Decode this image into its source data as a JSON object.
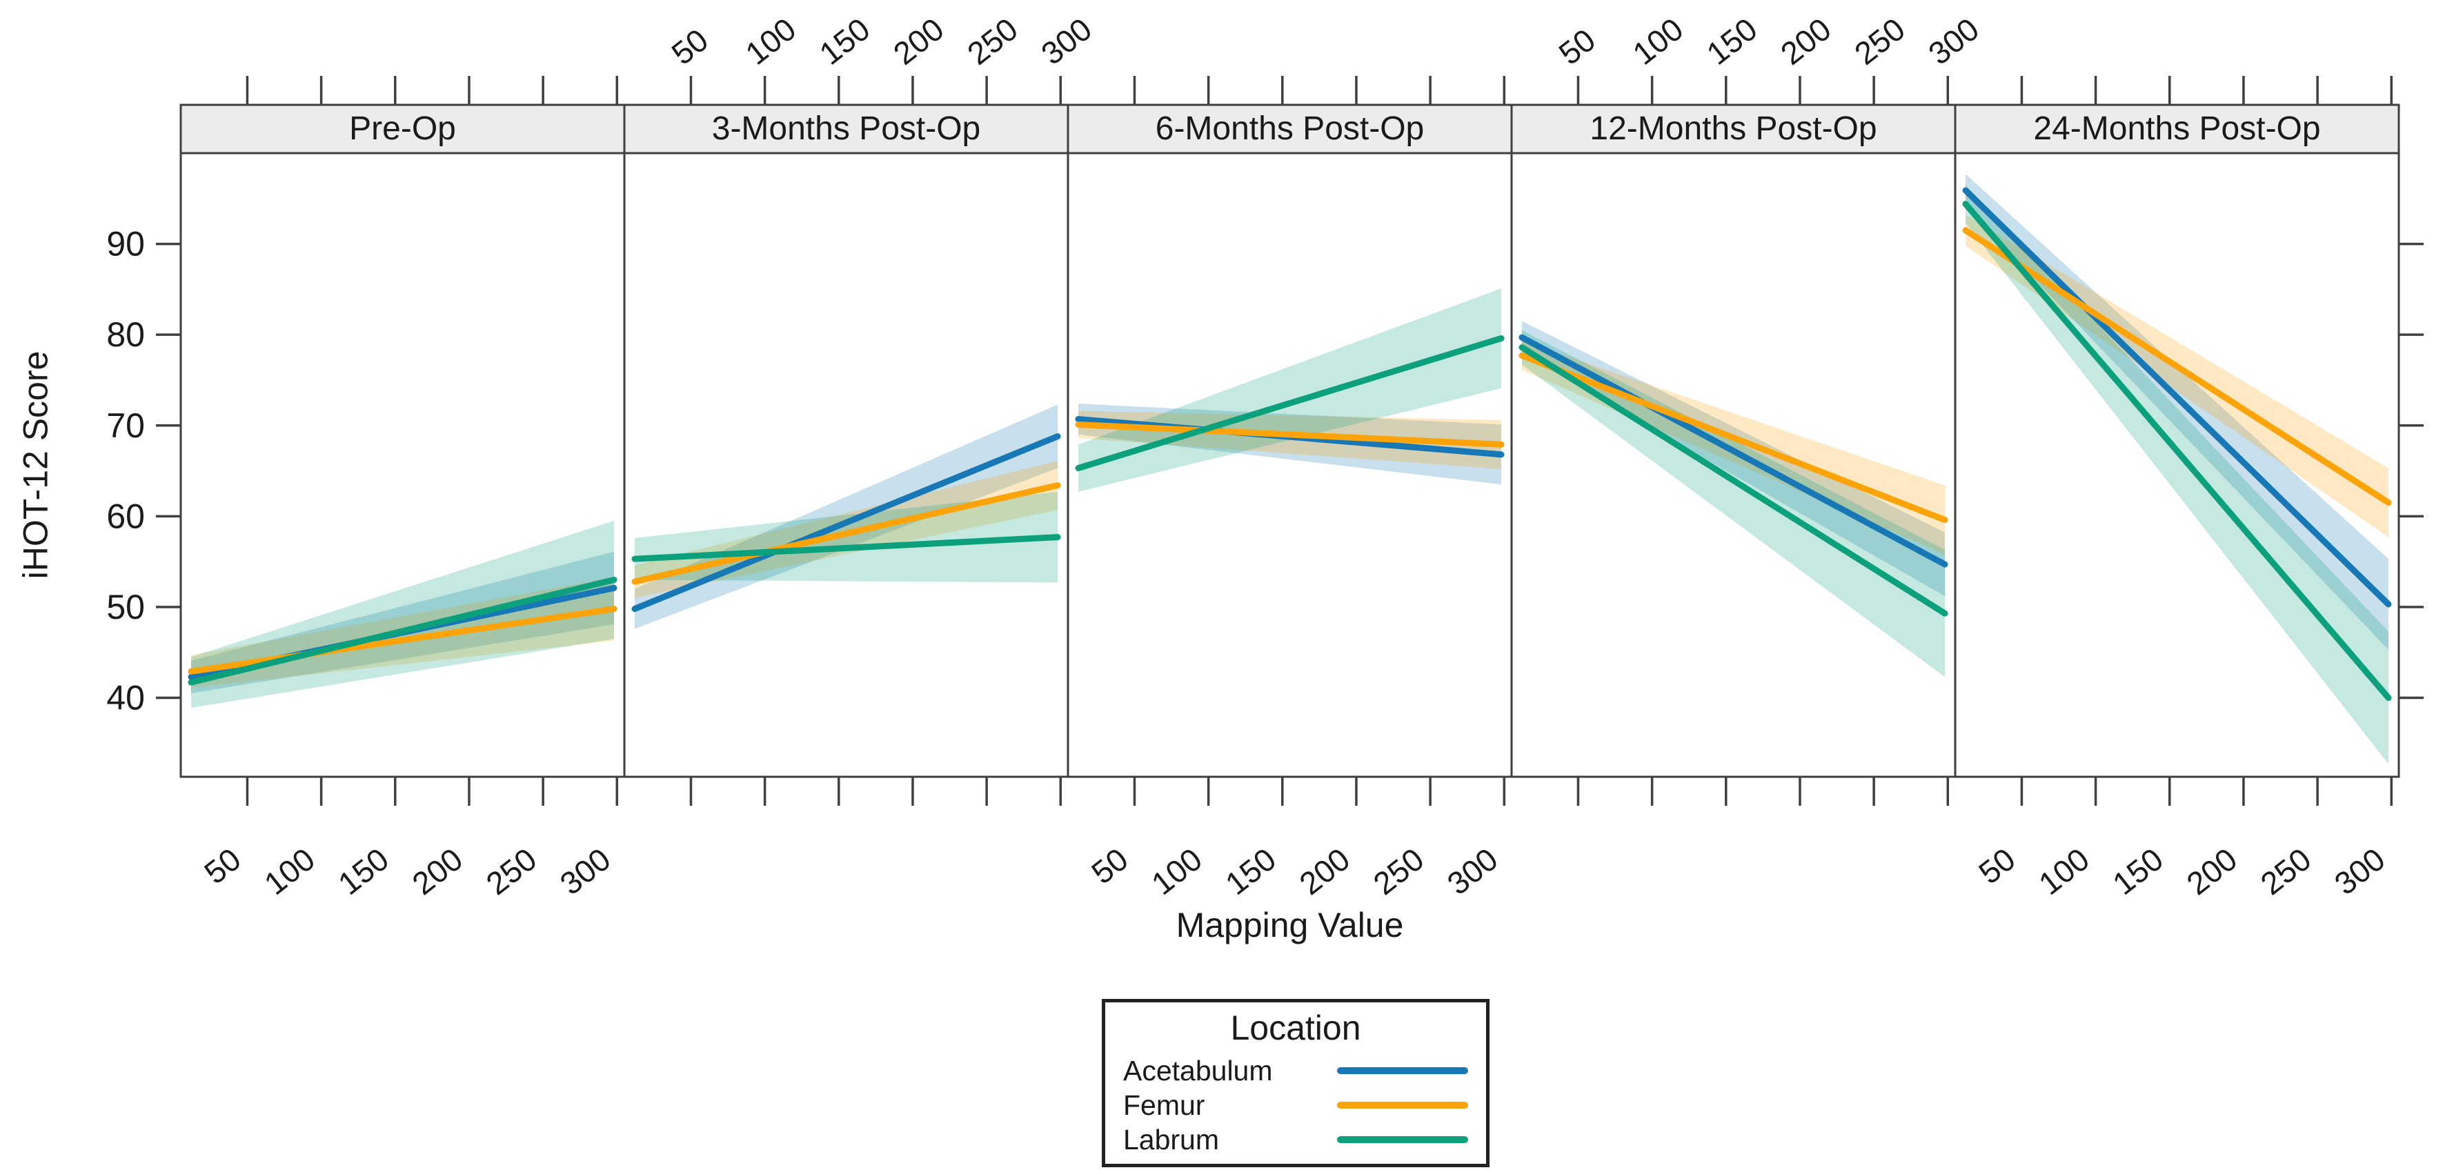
{
  "chart_data": {
    "type": "line",
    "title": "",
    "xlabel": "Mapping Value",
    "ylabel": "iHOT-12 Score",
    "x_ticks": [
      50,
      100,
      150,
      200,
      250,
      300
    ],
    "y_ticks": [
      40,
      50,
      60,
      70,
      80,
      90
    ],
    "x_range_per_panel": [
      5,
      305
    ],
    "y_range": [
      31.3,
      100
    ],
    "line_x_span": [
      12,
      298
    ],
    "grid": false,
    "band_opacity": 0.24,
    "panel_strip_fill": "#ececec",
    "panel_border_color": "#3f3f3f",
    "colors": {
      "Acetabulum": "#1878b5",
      "Femur": "#fca309",
      "Labrum": "#0ca17c"
    },
    "panels": [
      {
        "label": "Pre-Op",
        "series": [
          {
            "name": "Acetabulum",
            "y": [
              42.3,
              52.1
            ],
            "ci": [
              1.8,
              4.0
            ]
          },
          {
            "name": "Femur",
            "y": [
              42.9,
              49.8
            ],
            "ci": [
              1.8,
              3.5
            ]
          },
          {
            "name": "Labrum",
            "y": [
              41.7,
              53.0
            ],
            "ci": [
              2.8,
              6.5
            ]
          }
        ]
      },
      {
        "label": "3-Months Post-Op",
        "series": [
          {
            "name": "Acetabulum",
            "y": [
              49.8,
              68.8
            ],
            "ci": [
              2.2,
              3.5
            ]
          },
          {
            "name": "Femur",
            "y": [
              52.8,
              63.4
            ],
            "ci": [
              1.8,
              2.7
            ]
          },
          {
            "name": "Labrum",
            "y": [
              55.3,
              57.7
            ],
            "ci": [
              2.3,
              5.0
            ]
          }
        ]
      },
      {
        "label": "6-Months Post-Op",
        "series": [
          {
            "name": "Acetabulum",
            "y": [
              70.7,
              66.8
            ],
            "ci": [
              1.7,
              3.3
            ]
          },
          {
            "name": "Femur",
            "y": [
              70.1,
              67.9
            ],
            "ci": [
              1.5,
              2.7
            ]
          },
          {
            "name": "Labrum",
            "y": [
              65.3,
              79.6
            ],
            "ci": [
              2.6,
              5.5
            ]
          }
        ]
      },
      {
        "label": "12-Months Post-Op",
        "series": [
          {
            "name": "Acetabulum",
            "y": [
              79.7,
              54.7
            ],
            "ci": [
              1.8,
              3.5
            ]
          },
          {
            "name": "Femur",
            "y": [
              77.7,
              59.6
            ],
            "ci": [
              1.6,
              3.8
            ]
          },
          {
            "name": "Labrum",
            "y": [
              78.6,
              49.3
            ],
            "ci": [
              1.9,
              7.0
            ]
          }
        ]
      },
      {
        "label": "24-Months Post-Op",
        "series": [
          {
            "name": "Acetabulum",
            "y": [
              95.9,
              50.3
            ],
            "ci": [
              1.8,
              5.0
            ]
          },
          {
            "name": "Femur",
            "y": [
              91.5,
              61.5
            ],
            "ci": [
              1.7,
              3.8
            ]
          },
          {
            "name": "Labrum",
            "y": [
              94.4,
              40.0
            ],
            "ci": [
              2.1,
              7.3
            ]
          }
        ]
      }
    ],
    "legend": {
      "title": "Location",
      "position": "bottom-center",
      "entries": [
        {
          "label": "Acetabulum",
          "color": "#1878b5"
        },
        {
          "label": "Femur",
          "color": "#fca309"
        },
        {
          "label": "Labrum",
          "color": "#0ca17c"
        }
      ]
    }
  }
}
